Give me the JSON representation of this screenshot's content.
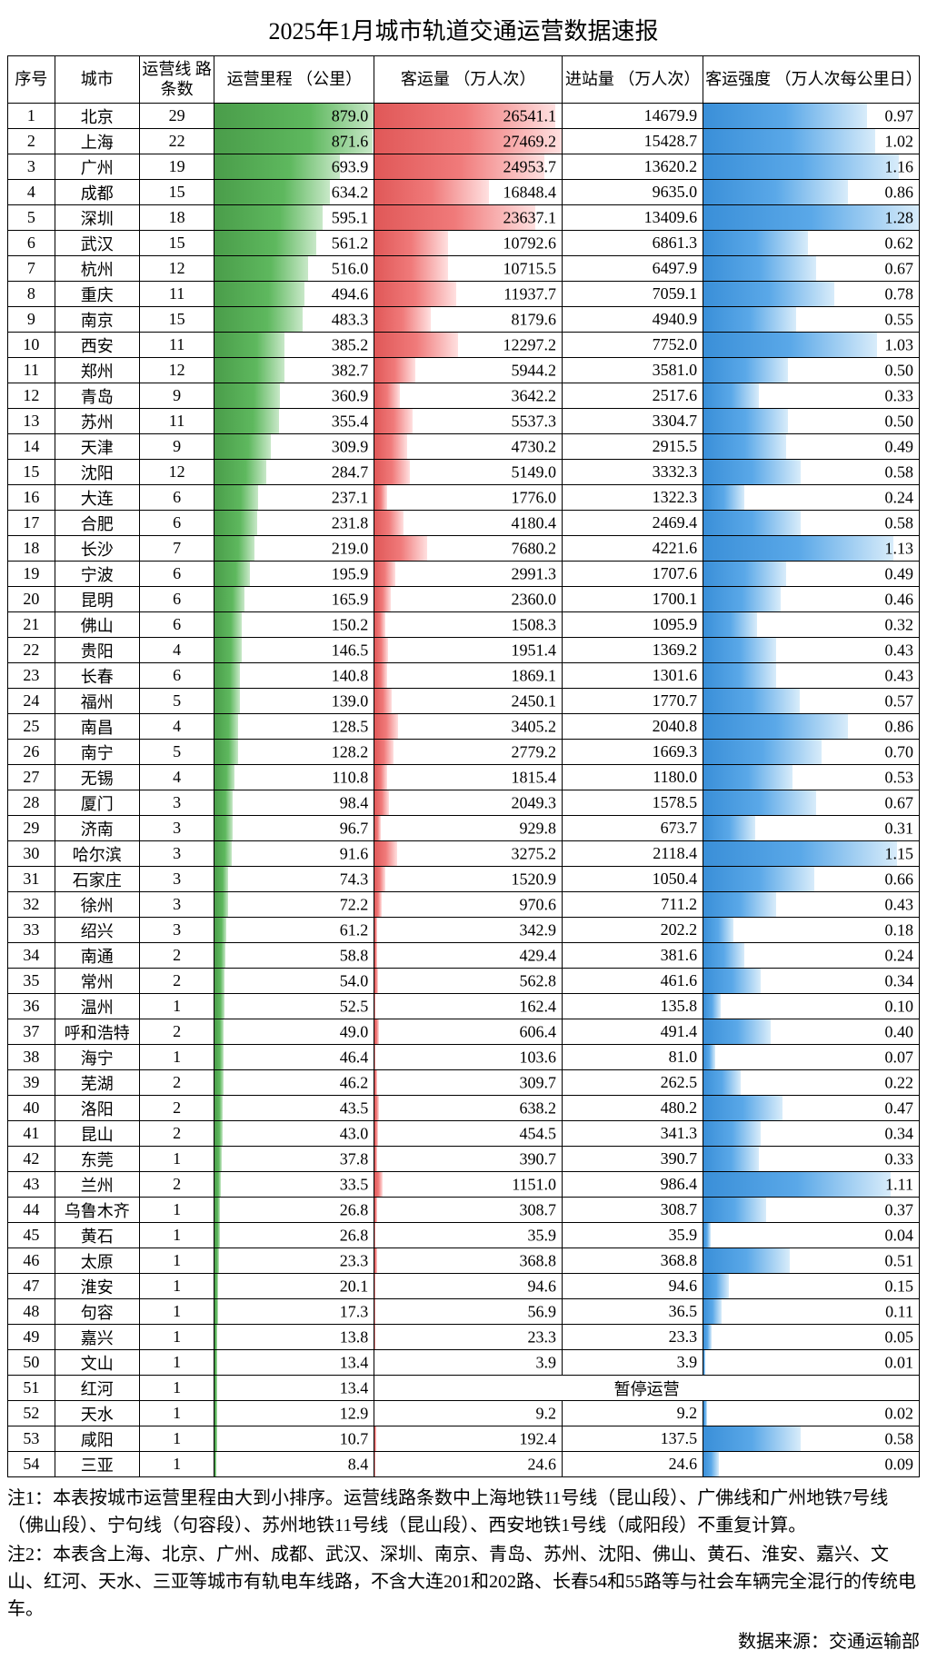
{
  "title": "2025年1月城市轨道交通运营数据速报",
  "columns": {
    "idx": "序号",
    "city": "城市",
    "lines": "运营线\n路条数",
    "mileage": "运营里程\n（公里）",
    "passengers": "客运量\n（万人次）",
    "station": "进站量\n（万人次）",
    "intensity": "客运强度\n（万人次每公里日）"
  },
  "max": {
    "mileage": 879.0,
    "passengers": 27469.2,
    "intensity": 1.28
  },
  "colors": {
    "mileage_bar": "green",
    "passengers_bar": "red",
    "intensity_bar": "blue",
    "border": "#000000",
    "bg": "#ffffff"
  },
  "suspended_text": "暂停运营",
  "rows": [
    {
      "idx": 1,
      "city": "北京",
      "lines": 29,
      "mileage": 879.0,
      "pass": 26541.1,
      "station": 14679.9,
      "intensity": 0.97
    },
    {
      "idx": 2,
      "city": "上海",
      "lines": 22,
      "mileage": 871.6,
      "pass": 27469.2,
      "station": 15428.7,
      "intensity": 1.02
    },
    {
      "idx": 3,
      "city": "广州",
      "lines": 19,
      "mileage": 693.9,
      "pass": 24953.7,
      "station": 13620.2,
      "intensity": 1.16
    },
    {
      "idx": 4,
      "city": "成都",
      "lines": 15,
      "mileage": 634.2,
      "pass": 16848.4,
      "station": 9635.0,
      "intensity": 0.86
    },
    {
      "idx": 5,
      "city": "深圳",
      "lines": 18,
      "mileage": 595.1,
      "pass": 23637.1,
      "station": 13409.6,
      "intensity": 1.28
    },
    {
      "idx": 6,
      "city": "武汉",
      "lines": 15,
      "mileage": 561.2,
      "pass": 10792.6,
      "station": 6861.3,
      "intensity": 0.62
    },
    {
      "idx": 7,
      "city": "杭州",
      "lines": 12,
      "mileage": 516.0,
      "pass": 10715.5,
      "station": 6497.9,
      "intensity": 0.67
    },
    {
      "idx": 8,
      "city": "重庆",
      "lines": 11,
      "mileage": 494.6,
      "pass": 11937.7,
      "station": 7059.1,
      "intensity": 0.78
    },
    {
      "idx": 9,
      "city": "南京",
      "lines": 15,
      "mileage": 483.3,
      "pass": 8179.6,
      "station": 4940.9,
      "intensity": 0.55
    },
    {
      "idx": 10,
      "city": "西安",
      "lines": 11,
      "mileage": 385.2,
      "pass": 12297.2,
      "station": 7752.0,
      "intensity": 1.03
    },
    {
      "idx": 11,
      "city": "郑州",
      "lines": 12,
      "mileage": 382.7,
      "pass": 5944.2,
      "station": 3581.0,
      "intensity": 0.5
    },
    {
      "idx": 12,
      "city": "青岛",
      "lines": 9,
      "mileage": 360.9,
      "pass": 3642.2,
      "station": 2517.6,
      "intensity": 0.33
    },
    {
      "idx": 13,
      "city": "苏州",
      "lines": 11,
      "mileage": 355.4,
      "pass": 5537.3,
      "station": 3304.7,
      "intensity": 0.5
    },
    {
      "idx": 14,
      "city": "天津",
      "lines": 9,
      "mileage": 309.9,
      "pass": 4730.2,
      "station": 2915.5,
      "intensity": 0.49
    },
    {
      "idx": 15,
      "city": "沈阳",
      "lines": 12,
      "mileage": 284.7,
      "pass": 5149.0,
      "station": 3332.3,
      "intensity": 0.58
    },
    {
      "idx": 16,
      "city": "大连",
      "lines": 6,
      "mileage": 237.1,
      "pass": 1776.0,
      "station": 1322.3,
      "intensity": 0.24
    },
    {
      "idx": 17,
      "city": "合肥",
      "lines": 6,
      "mileage": 231.8,
      "pass": 4180.4,
      "station": 2469.4,
      "intensity": 0.58
    },
    {
      "idx": 18,
      "city": "长沙",
      "lines": 7,
      "mileage": 219.0,
      "pass": 7680.2,
      "station": 4221.6,
      "intensity": 1.13
    },
    {
      "idx": 19,
      "city": "宁波",
      "lines": 6,
      "mileage": 195.9,
      "pass": 2991.3,
      "station": 1707.6,
      "intensity": 0.49
    },
    {
      "idx": 20,
      "city": "昆明",
      "lines": 6,
      "mileage": 165.9,
      "pass": 2360.0,
      "station": 1700.1,
      "intensity": 0.46
    },
    {
      "idx": 21,
      "city": "佛山",
      "lines": 6,
      "mileage": 150.2,
      "pass": 1508.3,
      "station": 1095.9,
      "intensity": 0.32
    },
    {
      "idx": 22,
      "city": "贵阳",
      "lines": 4,
      "mileage": 146.5,
      "pass": 1951.4,
      "station": 1369.2,
      "intensity": 0.43
    },
    {
      "idx": 23,
      "city": "长春",
      "lines": 6,
      "mileage": 140.8,
      "pass": 1869.1,
      "station": 1301.6,
      "intensity": 0.43
    },
    {
      "idx": 24,
      "city": "福州",
      "lines": 5,
      "mileage": 139.0,
      "pass": 2450.1,
      "station": 1770.7,
      "intensity": 0.57
    },
    {
      "idx": 25,
      "city": "南昌",
      "lines": 4,
      "mileage": 128.5,
      "pass": 3405.2,
      "station": 2040.8,
      "intensity": 0.86
    },
    {
      "idx": 26,
      "city": "南宁",
      "lines": 5,
      "mileage": 128.2,
      "pass": 2779.2,
      "station": 1669.3,
      "intensity": 0.7
    },
    {
      "idx": 27,
      "city": "无锡",
      "lines": 4,
      "mileage": 110.8,
      "pass": 1815.4,
      "station": 1180.0,
      "intensity": 0.53
    },
    {
      "idx": 28,
      "city": "厦门",
      "lines": 3,
      "mileage": 98.4,
      "pass": 2049.3,
      "station": 1578.5,
      "intensity": 0.67
    },
    {
      "idx": 29,
      "city": "济南",
      "lines": 3,
      "mileage": 96.7,
      "pass": 929.8,
      "station": 673.7,
      "intensity": 0.31
    },
    {
      "idx": 30,
      "city": "哈尔滨",
      "lines": 3,
      "mileage": 91.6,
      "pass": 3275.2,
      "station": 2118.4,
      "intensity": 1.15
    },
    {
      "idx": 31,
      "city": "石家庄",
      "lines": 3,
      "mileage": 74.3,
      "pass": 1520.9,
      "station": 1050.4,
      "intensity": 0.66
    },
    {
      "idx": 32,
      "city": "徐州",
      "lines": 3,
      "mileage": 72.2,
      "pass": 970.6,
      "station": 711.2,
      "intensity": 0.43
    },
    {
      "idx": 33,
      "city": "绍兴",
      "lines": 3,
      "mileage": 61.2,
      "pass": 342.9,
      "station": 202.2,
      "intensity": 0.18
    },
    {
      "idx": 34,
      "city": "南通",
      "lines": 2,
      "mileage": 58.8,
      "pass": 429.4,
      "station": 381.6,
      "intensity": 0.24
    },
    {
      "idx": 35,
      "city": "常州",
      "lines": 2,
      "mileage": 54.0,
      "pass": 562.8,
      "station": 461.6,
      "intensity": 0.34
    },
    {
      "idx": 36,
      "city": "温州",
      "lines": 1,
      "mileage": 52.5,
      "pass": 162.4,
      "station": 135.8,
      "intensity": 0.1
    },
    {
      "idx": 37,
      "city": "呼和浩特",
      "lines": 2,
      "mileage": 49.0,
      "pass": 606.4,
      "station": 491.4,
      "intensity": 0.4
    },
    {
      "idx": 38,
      "city": "海宁",
      "lines": 1,
      "mileage": 46.4,
      "pass": 103.6,
      "station": 81.0,
      "intensity": 0.07
    },
    {
      "idx": 39,
      "city": "芜湖",
      "lines": 2,
      "mileage": 46.2,
      "pass": 309.7,
      "station": 262.5,
      "intensity": 0.22
    },
    {
      "idx": 40,
      "city": "洛阳",
      "lines": 2,
      "mileage": 43.5,
      "pass": 638.2,
      "station": 480.2,
      "intensity": 0.47
    },
    {
      "idx": 41,
      "city": "昆山",
      "lines": 2,
      "mileage": 43.0,
      "pass": 454.5,
      "station": 341.3,
      "intensity": 0.34
    },
    {
      "idx": 42,
      "city": "东莞",
      "lines": 1,
      "mileage": 37.8,
      "pass": 390.7,
      "station": 390.7,
      "intensity": 0.33
    },
    {
      "idx": 43,
      "city": "兰州",
      "lines": 2,
      "mileage": 33.5,
      "pass": 1151.0,
      "station": 986.4,
      "intensity": 1.11
    },
    {
      "idx": 44,
      "city": "乌鲁木齐",
      "lines": 1,
      "mileage": 26.8,
      "pass": 308.7,
      "station": 308.7,
      "intensity": 0.37
    },
    {
      "idx": 45,
      "city": "黄石",
      "lines": 1,
      "mileage": 26.8,
      "pass": 35.9,
      "station": 35.9,
      "intensity": 0.04
    },
    {
      "idx": 46,
      "city": "太原",
      "lines": 1,
      "mileage": 23.3,
      "pass": 368.8,
      "station": 368.8,
      "intensity": 0.51
    },
    {
      "idx": 47,
      "city": "淮安",
      "lines": 1,
      "mileage": 20.1,
      "pass": 94.6,
      "station": 94.6,
      "intensity": 0.15
    },
    {
      "idx": 48,
      "city": "句容",
      "lines": 1,
      "mileage": 17.3,
      "pass": 56.9,
      "station": 36.5,
      "intensity": 0.11
    },
    {
      "idx": 49,
      "city": "嘉兴",
      "lines": 1,
      "mileage": 13.8,
      "pass": 23.3,
      "station": 23.3,
      "intensity": 0.05
    },
    {
      "idx": 50,
      "city": "文山",
      "lines": 1,
      "mileage": 13.4,
      "pass": 3.9,
      "station": 3.9,
      "intensity": 0.01
    },
    {
      "idx": 51,
      "city": "红河",
      "lines": 1,
      "mileage": 13.4,
      "suspended": true
    },
    {
      "idx": 52,
      "city": "天水",
      "lines": 1,
      "mileage": 12.9,
      "pass": 9.2,
      "station": 9.2,
      "intensity": 0.02
    },
    {
      "idx": 53,
      "city": "咸阳",
      "lines": 1,
      "mileage": 10.7,
      "pass": 192.4,
      "station": 137.5,
      "intensity": 0.58
    },
    {
      "idx": 54,
      "city": "三亚",
      "lines": 1,
      "mileage": 8.4,
      "pass": 24.6,
      "station": 24.6,
      "intensity": 0.09
    }
  ],
  "notes": [
    "注1：本表按城市运营里程由大到小排序。运营线路条数中上海地铁11号线（昆山段）、广佛线和广州地铁7号线（佛山段）、宁句线（句容段）、苏州地铁11号线（昆山段）、西安地铁1号线（咸阳段）不重复计算。",
    "注2：本表含上海、北京、广州、成都、武汉、深圳、南京、青岛、苏州、沈阳、佛山、黄石、淮安、嘉兴、文山、红河、天水、三亚等城市有轨电车线路，不含大连201和202路、长春54和55路等与社会车辆完全混行的传统电车。"
  ],
  "source": "数据来源：交通运输部"
}
